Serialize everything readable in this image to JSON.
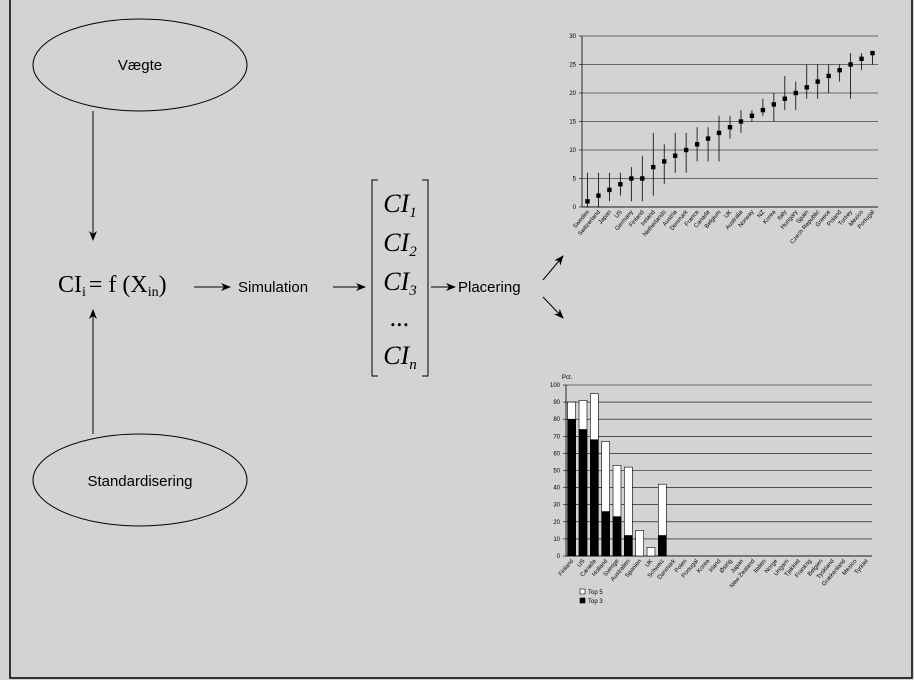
{
  "diagram": {
    "weights": "Vægte",
    "standardization": "Standardisering",
    "formula": {
      "lhs": "CI",
      "lhs_sub": "i",
      "rhs": "= f (X",
      "rhs_sub": "in",
      "close": ")"
    },
    "simulation": "Simulation",
    "matrix": [
      {
        "base": "CI",
        "sub": "1"
      },
      {
        "base": "CI",
        "sub": "2"
      },
      {
        "base": "CI",
        "sub": "3"
      },
      {
        "base": "...",
        "sub": ""
      },
      {
        "base": "CI",
        "sub": "n"
      }
    ],
    "placement": "Placering"
  },
  "chart_data": [
    {
      "type": "range",
      "categories": [
        "Sweden",
        "Switzerland",
        "Japan",
        "US",
        "Germany",
        "Finland",
        "Ireland",
        "Netherlands",
        "Austria",
        "Denmark",
        "France",
        "Canada",
        "Belgium",
        "UK",
        "Australia",
        "Norway",
        "NZ",
        "Korea",
        "Italy",
        "Hungary",
        "Spain",
        "Czech Republic",
        "Greece",
        "Poland",
        "Turkey",
        "Mexico",
        "Portugal"
      ],
      "values": [
        1,
        2,
        3,
        4,
        5,
        5,
        7,
        8,
        9,
        10,
        11,
        12,
        13,
        14,
        15,
        16,
        17,
        18,
        19,
        20,
        21,
        22,
        23,
        24,
        25,
        26,
        27
      ],
      "low": [
        0,
        0,
        1,
        2,
        1,
        1,
        2,
        4,
        6,
        6,
        8,
        8,
        8,
        12,
        13,
        15,
        16,
        15,
        17,
        17,
        19,
        19,
        20,
        22,
        19,
        24,
        25
      ],
      "high": [
        6,
        6,
        6,
        6,
        7,
        9,
        13,
        11,
        13,
        13,
        14,
        14,
        16,
        16,
        17,
        17,
        19,
        20,
        23,
        22,
        25,
        25,
        25,
        25,
        27,
        27,
        27
      ],
      "color": "#000000",
      "ylim": [
        0,
        30
      ],
      "yticks": [
        0,
        5,
        10,
        15,
        20,
        25,
        30
      ],
      "grid": true
    },
    {
      "type": "bar",
      "y_label": "Pct.",
      "categories": [
        "Finland",
        "US",
        "Canada",
        "Holland",
        "Sverige",
        "Australien",
        "Spanien",
        "UK",
        "Schweiz",
        "Danmark",
        "Polen",
        "Portugal",
        "Korea",
        "Irland",
        "Østrig",
        "Japan",
        "New Zealand",
        "Italien",
        "Norge",
        "Ungarn",
        "Tjekkiet",
        "Frankrig",
        "Belgien",
        "Tyskland",
        "Grækenland",
        "Mexico",
        "Tyrkiet"
      ],
      "series": [
        {
          "name": "Top 5",
          "color": "#ffffff",
          "values": [
            90,
            91,
            95,
            67,
            53,
            52,
            15,
            5,
            42,
            0,
            0,
            0,
            0,
            0,
            0,
            0,
            0,
            0,
            0,
            0,
            0,
            0,
            0,
            0,
            0,
            0,
            0
          ]
        },
        {
          "name": "Top 3",
          "color": "#000000",
          "values": [
            80,
            74,
            68,
            26,
            23,
            12,
            0,
            0,
            12,
            0,
            0,
            0,
            0,
            0,
            0,
            0,
            0,
            0,
            0,
            0,
            0,
            0,
            0,
            0,
            0,
            0,
            0
          ]
        }
      ],
      "overlap": true,
      "ylim": [
        0,
        100
      ],
      "yticks": [
        0,
        10,
        20,
        30,
        40,
        50,
        60,
        70,
        80,
        90,
        100
      ],
      "grid": true
    }
  ]
}
